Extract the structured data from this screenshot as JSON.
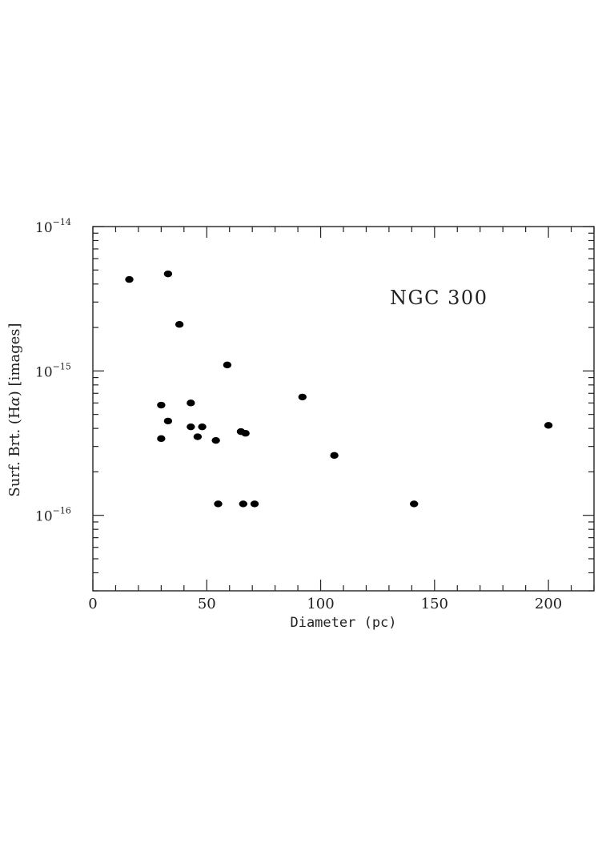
{
  "chart_data": {
    "type": "scatter",
    "annotation": "NGC 300",
    "xlabel": "Diameter (pc)",
    "ylabel_prefix": "Surf. Brt. (H",
    "ylabel_alpha": "α",
    "ylabel_suffix": ") [images]",
    "x_scale": "linear",
    "y_scale": "log",
    "xlim": [
      0,
      220
    ],
    "ylim": [
      3e-17,
      1e-14
    ],
    "x_tick_values": [
      0,
      50,
      100,
      150,
      200
    ],
    "x_tick_labels": [
      "0",
      "50",
      "100",
      "150",
      "200"
    ],
    "y_tick_values": [
      1e-16,
      1e-15,
      1e-14
    ],
    "y_tick_mantissa": [
      "10",
      "10",
      "10"
    ],
    "y_tick_exponents": [
      "−16",
      "−15",
      "−14"
    ],
    "marker_color": "#000000",
    "points": [
      {
        "x": 16,
        "y": 4.3e-15
      },
      {
        "x": 33,
        "y": 4.7e-15
      },
      {
        "x": 38,
        "y": 2.1e-15
      },
      {
        "x": 59,
        "y": 1.1e-15
      },
      {
        "x": 92,
        "y": 6.6e-16
      },
      {
        "x": 30,
        "y": 5.8e-16
      },
      {
        "x": 43,
        "y": 6e-16
      },
      {
        "x": 33,
        "y": 4.5e-16
      },
      {
        "x": 43,
        "y": 4.1e-16
      },
      {
        "x": 48,
        "y": 4.1e-16
      },
      {
        "x": 65,
        "y": 3.8e-16
      },
      {
        "x": 67,
        "y": 3.7e-16
      },
      {
        "x": 30,
        "y": 3.4e-16
      },
      {
        "x": 46,
        "y": 3.5e-16
      },
      {
        "x": 54,
        "y": 3.3e-16
      },
      {
        "x": 106,
        "y": 2.6e-16
      },
      {
        "x": 200,
        "y": 4.2e-16
      },
      {
        "x": 55,
        "y": 1.2e-16
      },
      {
        "x": 66,
        "y": 1.2e-16
      },
      {
        "x": 71,
        "y": 1.2e-16
      },
      {
        "x": 141,
        "y": 1.2e-16
      }
    ]
  }
}
